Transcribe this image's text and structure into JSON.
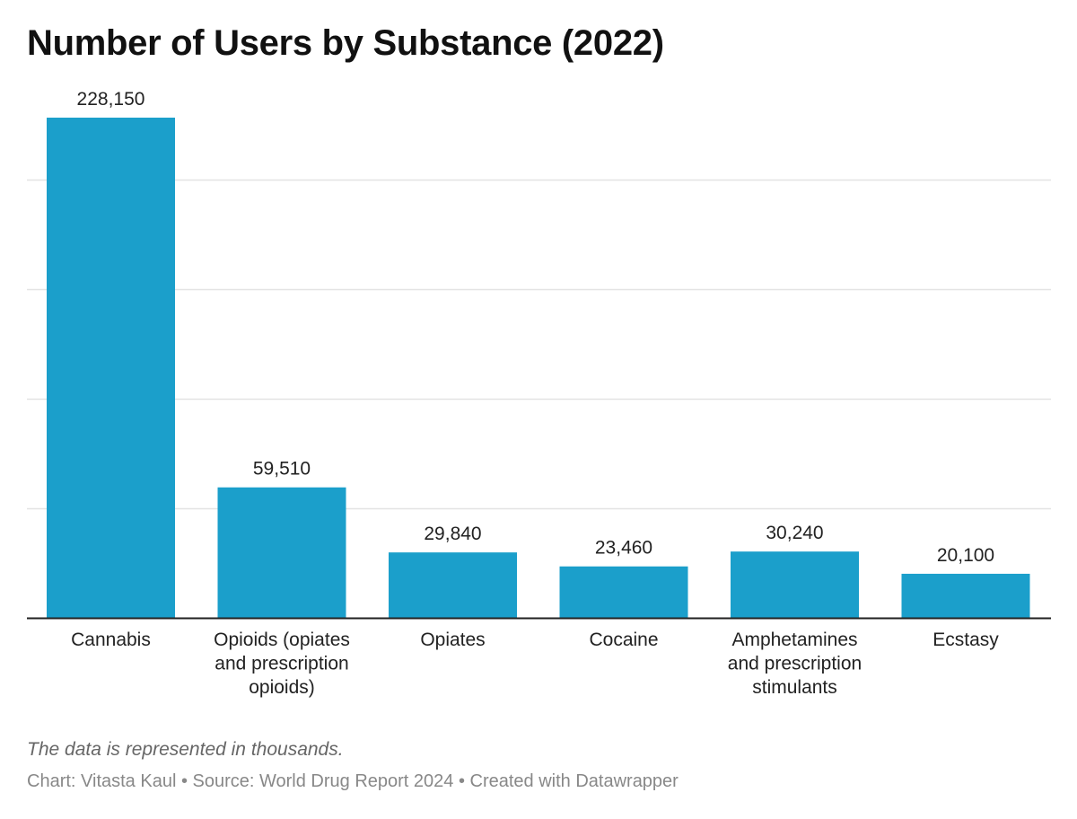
{
  "chart_data": {
    "type": "bar",
    "title": "Number of Users by Substance (2022)",
    "categories": [
      "Cannabis",
      "Opioids (opiates and prescription opioids)",
      "Opiates",
      "Cocaine",
      "Amphetamines and prescription stimulants",
      "Ecstasy"
    ],
    "category_lines": [
      [
        "Cannabis"
      ],
      [
        "Opioids (opiates",
        "and prescription",
        "opioids)"
      ],
      [
        "Opiates"
      ],
      [
        "Cocaine"
      ],
      [
        "Amphetamines",
        "and prescription",
        "stimulants"
      ],
      [
        "Ecstasy"
      ]
    ],
    "values": [
      228150,
      59510,
      29840,
      23460,
      30240,
      20100
    ],
    "value_labels": [
      "228,150",
      "59,510",
      "29,840",
      "23,460",
      "30,240",
      "20,100"
    ],
    "ylim": [
      0,
      228150
    ],
    "gridlines": [
      50000,
      100000,
      150000,
      200000
    ],
    "grid": true,
    "legend": "none",
    "bar_color": "#1b9fcb",
    "xlabel": "",
    "ylabel": ""
  },
  "footer": {
    "note": "The data is represented in thousands.",
    "credit": "Chart: Vitasta Kaul • Source: World Drug Report 2024 • Created with Datawrapper"
  }
}
